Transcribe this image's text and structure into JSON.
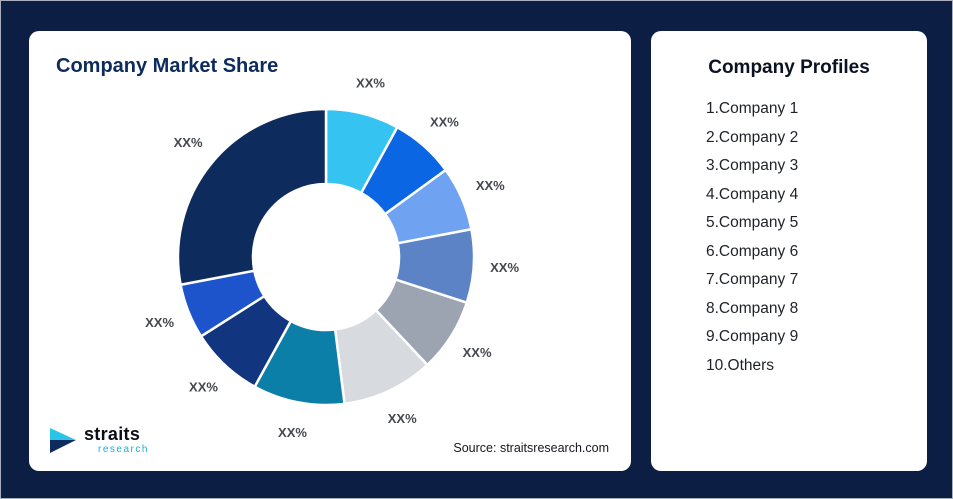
{
  "colors": {
    "background": "#0d1e44",
    "card": "#ffffff",
    "title_navy": "#0d2b5c",
    "logo_teal": "#14b4d6"
  },
  "left_card": {
    "title": "Company Market Share",
    "source": "Source: straitsresearch.com",
    "logo_main": "straits",
    "logo_sub": "research"
  },
  "right_card": {
    "title": "Company Profiles",
    "items": [
      "1.Company 1",
      "2.Company 2",
      "3.Company 3",
      "4.Company 4",
      "5.Company 5",
      "6.Company 6",
      "7.Company 7",
      "8.Company 8",
      "9.Company 9",
      "10.Others"
    ]
  },
  "chart_data": {
    "type": "pie",
    "donut": true,
    "title": "Company Market Share",
    "labels": [
      "XX%",
      "XX%",
      "XX%",
      "XX%",
      "XX%",
      "XX%",
      "XX%",
      "XX%",
      "XX%",
      "XX%"
    ],
    "values": [
      8,
      7,
      7,
      8,
      8,
      10,
      10,
      8,
      6,
      28
    ],
    "colors": [
      "#35c3f2",
      "#0b66e4",
      "#6fa3f2",
      "#5b83c6",
      "#9ba4b0",
      "#d7dbe0",
      "#0b7fa7",
      "#11357e",
      "#1d54cc",
      "#0d2b5c"
    ],
    "start_angle_deg": -90,
    "direction": "clockwise",
    "inner_radius_ratio": 0.49,
    "legend": "none",
    "source": "Source: straitsresearch.com"
  }
}
